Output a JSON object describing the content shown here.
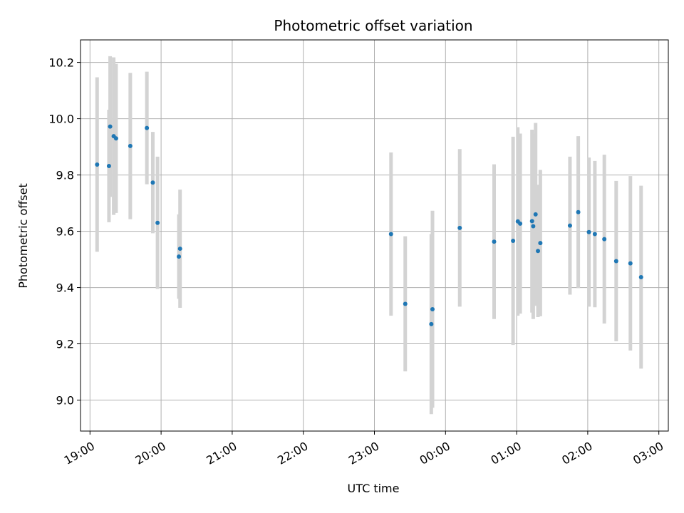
{
  "chart_data": {
    "type": "scatter",
    "title": "Photometric offset variation",
    "xlabel": "UTC time",
    "ylabel": "Photometric offset",
    "grid": true,
    "x_ticks": [
      "19:00",
      "20:00",
      "21:00",
      "22:00",
      "23:00",
      "00:00",
      "01:00",
      "02:00",
      "03:00"
    ],
    "y_ticks": [
      "9.0",
      "9.2",
      "9.4",
      "9.6",
      "9.8",
      "10.0",
      "10.2"
    ],
    "xlim": [
      "18:52",
      "03:08"
    ],
    "ylim": [
      8.89,
      10.28
    ],
    "point_color": "#1f77b4",
    "errorbar_color": "#d3d3d3",
    "points": [
      {
        "time": "19:06",
        "y": 9.837,
        "err": 0.31
      },
      {
        "time": "19:16",
        "y": 9.832,
        "err": 0.2
      },
      {
        "time": "19:17",
        "y": 9.972,
        "err": 0.25
      },
      {
        "time": "19:20",
        "y": 9.938,
        "err": 0.28
      },
      {
        "time": "19:22",
        "y": 9.93,
        "err": 0.265
      },
      {
        "time": "19:34",
        "y": 9.903,
        "err": 0.26
      },
      {
        "time": "19:48",
        "y": 9.967,
        "err": 0.2
      },
      {
        "time": "19:53",
        "y": 9.773,
        "err": 0.18
      },
      {
        "time": "19:57",
        "y": 9.63,
        "err": 0.235
      },
      {
        "time": "20:15",
        "y": 9.51,
        "err": 0.15
      },
      {
        "time": "20:16",
        "y": 9.538,
        "err": 0.21
      },
      {
        "time": "23:14",
        "y": 9.59,
        "err": 0.29
      },
      {
        "time": "23:26",
        "y": 9.342,
        "err": 0.24
      },
      {
        "time": "23:48",
        "y": 9.27,
        "err": 0.32
      },
      {
        "time": "23:49",
        "y": 9.323,
        "err": 0.35
      },
      {
        "time": "00:12",
        "y": 9.612,
        "err": 0.28
      },
      {
        "time": "00:41",
        "y": 9.563,
        "err": 0.275
      },
      {
        "time": "00:57",
        "y": 9.566,
        "err": 0.37
      },
      {
        "time": "01:01",
        "y": 9.635,
        "err": 0.335
      },
      {
        "time": "01:03",
        "y": 9.627,
        "err": 0.32
      },
      {
        "time": "01:13",
        "y": 9.636,
        "err": 0.325
      },
      {
        "time": "01:14",
        "y": 9.618,
        "err": 0.33
      },
      {
        "time": "01:16",
        "y": 9.66,
        "err": 0.325
      },
      {
        "time": "01:18",
        "y": 9.53,
        "err": 0.235
      },
      {
        "time": "01:20",
        "y": 9.558,
        "err": 0.26
      },
      {
        "time": "01:45",
        "y": 9.62,
        "err": 0.245
      },
      {
        "time": "01:52",
        "y": 9.668,
        "err": 0.27
      },
      {
        "time": "02:01",
        "y": 9.597,
        "err": 0.265
      },
      {
        "time": "02:06",
        "y": 9.59,
        "err": 0.26
      },
      {
        "time": "02:14",
        "y": 9.572,
        "err": 0.3
      },
      {
        "time": "02:24",
        "y": 9.494,
        "err": 0.285
      },
      {
        "time": "02:36",
        "y": 9.486,
        "err": 0.31
      },
      {
        "time": "02:45",
        "y": 9.437,
        "err": 0.325
      }
    ]
  }
}
